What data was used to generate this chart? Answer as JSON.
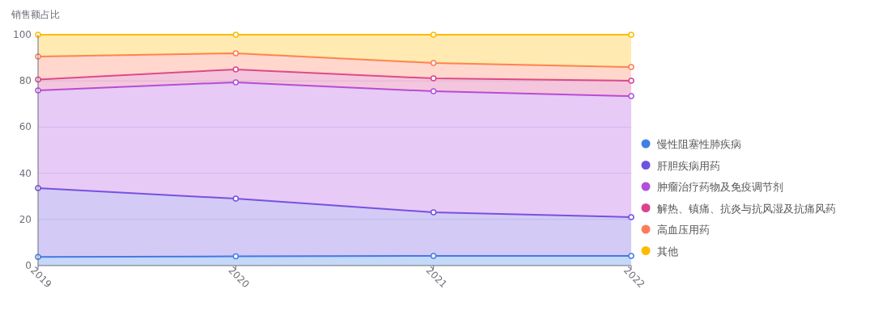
{
  "chart_data": {
    "type": "area",
    "stacked": true,
    "marker": "circle",
    "grid": "y",
    "legend": "right",
    "ylabel": "销售额占比",
    "categories": [
      "2019",
      "2020",
      "2021",
      "2022"
    ],
    "ylim": [
      0,
      100
    ],
    "yticks": [
      0,
      20,
      40,
      60,
      80,
      100
    ],
    "series": [
      {
        "name": "慢性阻塞性肺疾病",
        "color": "#3f7fe6",
        "values": [
          3.8,
          4.0,
          4.2,
          4.2
        ]
      },
      {
        "name": "肝胆疾病用药",
        "color": "#6e52e0",
        "values": [
          29.8,
          25.0,
          18.9,
          16.8
        ]
      },
      {
        "name": "肿瘤治疗药物及免疫调节剂",
        "color": "#b14fe0",
        "values": [
          42.3,
          50.4,
          52.4,
          52.4
        ]
      },
      {
        "name": "解热、镇痛、抗炎与抗风湿及抗痛风药",
        "color": "#d9438f",
        "values": [
          4.7,
          5.6,
          5.6,
          6.7
        ]
      },
      {
        "name": "高血压用药",
        "color": "#ff7b5a",
        "values": [
          10.0,
          7.0,
          6.7,
          5.9
        ]
      },
      {
        "name": "其他",
        "color": "#ffbb00",
        "values": [
          9.4,
          8.0,
          12.2,
          14.0
        ]
      }
    ]
  }
}
